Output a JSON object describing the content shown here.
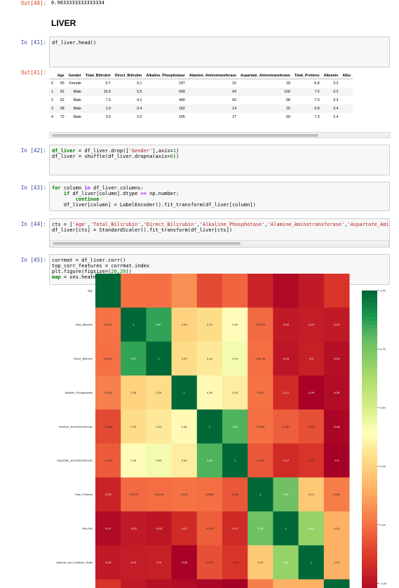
{
  "top_output": {
    "prompt": "Out[40]:",
    "value": "0.9833333333333334"
  },
  "section_title": "LIVER",
  "cells": [
    {
      "prompt": "In [41]:",
      "code": "df_liver.head()"
    },
    {
      "prompt": "In [42]:",
      "code": "df_liver = df_liver.drop(['Gender'],axis=1)\ndf_liver = shuffle(df_liver.dropna(axis=0))"
    },
    {
      "prompt": "In [43]:",
      "code": "for column in df_liver.columns:\n    if df_liver[column].dtype == np.number:\n        continue\n    df_liver[column] = LabelEncoder().fit_transform(df_liver[column])"
    },
    {
      "prompt": "In [44]:",
      "code": "cts = ['Age','Total_Bilirubin','Direct_Bilirubin','Alkaline_Phosphotase','Alamine_Aminotransferase','Aspartate_Amin\ndf_liver[cts] = StandardScaler().fit_transform(df_liver[cts])"
    },
    {
      "prompt": "In [45]:",
      "code": "corrmat = df_liver.corr()\ntop_corr_features = corrmat.index\nplt.figure(figsize=(20,20))\nmap = sns.heatmap(df_liver[top_corr_features].corr(),annot=True,cmap='RdYlGn')"
    }
  ],
  "out41": {
    "prompt": "Out[41]:",
    "columns": [
      "",
      "Age",
      "Gender",
      "Total_Bilirubin",
      "Direct_Bilirubin",
      "Alkaline_Phosphotase",
      "Alamine_Aminotransferase",
      "Aspartate_Aminotransferase",
      "Total_Protiens",
      "Albumin",
      "Albu"
    ],
    "rows": [
      [
        "0",
        "65",
        "Female",
        "0.7",
        "0.1",
        "187",
        "16",
        "18",
        "6.8",
        "3.3",
        ""
      ],
      [
        "1",
        "62",
        "Male",
        "10.9",
        "5.5",
        "699",
        "64",
        "100",
        "7.5",
        "3.2",
        ""
      ],
      [
        "2",
        "62",
        "Male",
        "7.3",
        "4.1",
        "490",
        "60",
        "68",
        "7.0",
        "3.3",
        ""
      ],
      [
        "3",
        "58",
        "Male",
        "1.0",
        "0.4",
        "182",
        "14",
        "20",
        "6.8",
        "3.4",
        ""
      ],
      [
        "4",
        "72",
        "Male",
        "3.9",
        "2.0",
        "195",
        "27",
        "59",
        "7.3",
        "2.4",
        ""
      ]
    ]
  },
  "chart_data": {
    "type": "heatmap",
    "title": "",
    "row_labels": [
      "Age",
      "Total_Bilirubin",
      "Direct_Bilirubin",
      "Alkaline_Phosphotase",
      "Alamine_Aminotransferase",
      "Aspartate_Aminotransferase",
      "Total_Protiens",
      "Albumin",
      "Albumin_and_Globulin_Ratio",
      ""
    ],
    "colormap": "RdYlGn",
    "colorbar_ticks": [
      "1.00",
      "0.75",
      "0.50",
      "0.25",
      "0.00",
      "-0.25"
    ],
    "colorbar_range": [
      -0.3,
      1.0
    ],
    "values": [
      [
        1,
        0.01,
        0.0071,
        0.08,
        -0.087,
        -0.02,
        -0.19,
        -0.27,
        -0.22,
        -0.14
      ],
      [
        0.014,
        1,
        0.87,
        0.26,
        0.29,
        0.39,
        -0.0079,
        -0.22,
        -0.21,
        -0.22
      ],
      [
        0.0091,
        0.87,
        1,
        0.29,
        0.33,
        0.43,
        1.5e-05,
        -0.23,
        -0.2,
        -0.25
      ],
      [
        0.043,
        0.26,
        0.29,
        1,
        0.38,
        0.34,
        0.011,
        -0.17,
        -0.29,
        -0.26
      ],
      [
        -0.086,
        0.29,
        0.33,
        0.38,
        1,
        0.83,
        0.0069,
        -0.037,
        -0.072,
        -0.28
      ],
      [
        -0.043,
        0.39,
        0.43,
        0.34,
        0.83,
        1,
        -0.051,
        -0.17,
        -0.14,
        -0.3
      ],
      [
        -0.19,
        -0.0079,
        1.5e-05,
        0.011,
        0.0069,
        -0.051,
        1,
        0.78,
        0.23,
        0.034
      ],
      [
        -0.27,
        -0.22,
        -0.23,
        -0.17,
        -0.037,
        -0.17,
        0.78,
        1,
        0.69,
        0.16
      ],
      [
        -0.22,
        -0.21,
        -0.2,
        -0.29,
        -0.072,
        -0.14,
        0.23,
        0.69,
        1,
        0.16
      ],
      [
        -0.14,
        -0.22,
        -0.25,
        -0.26,
        -0.28,
        -0.3,
        0.034,
        0.16,
        0.16,
        1
      ]
    ],
    "annotations": [
      [
        "",
        "",
        "",
        "",
        "",
        "",
        "",
        "",
        "",
        ""
      ],
      [
        "0.014",
        "1",
        "0.87",
        "0.26",
        "0.29",
        "0.39",
        "-0.0079",
        "-0.22",
        "-0.21",
        "-0.22"
      ],
      [
        "0.0091",
        "0.87",
        "1",
        "0.29",
        "0.33",
        "0.43",
        "1.5e-05",
        "-0.23",
        "-0.2",
        "-0.25"
      ],
      [
        "0.043",
        "0.26",
        "0.29",
        "1",
        "0.38",
        "0.34",
        "0.011",
        "-0.17",
        "-0.29",
        "-0.26"
      ],
      [
        "-0.086",
        "0.29",
        "0.33",
        "0.38",
        "1",
        "0.83",
        "0.0069",
        "-0.037",
        "-0.072",
        "-0.28"
      ],
      [
        "-0.043",
        "0.39",
        "0.43",
        "0.34",
        "0.83",
        "1",
        "-0.051",
        "-0.17",
        "-0.14",
        "-0.3"
      ],
      [
        "-0.19",
        "-0.0079",
        "1.5e-05",
        "0.011",
        "0.0069",
        "-0.051",
        "1",
        "0.78",
        "0.23",
        "0.034"
      ],
      [
        "-0.27",
        "-0.22",
        "-0.23",
        "-0.17",
        "-0.037",
        "-0.17",
        "0.78",
        "1",
        "0.69",
        "0.16"
      ],
      [
        "-0.22",
        "-0.21",
        "-0.2",
        "-0.29",
        "-0.072",
        "-0.14",
        "0.23",
        "0.69",
        "1",
        "0.16"
      ],
      [
        "",
        "",
        "",
        "",
        "",
        "",
        "",
        "",
        "",
        ""
      ]
    ]
  }
}
